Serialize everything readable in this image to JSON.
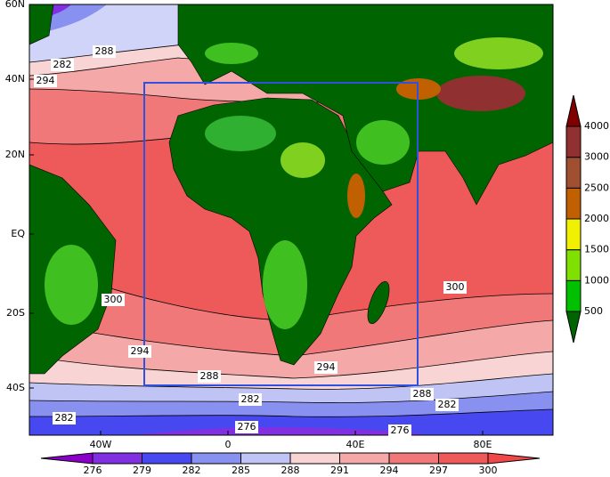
{
  "map": {
    "lat_labels": [
      "60N",
      "40N",
      "20N",
      "EQ",
      "20S",
      "40S"
    ],
    "lon_labels": [
      "40W",
      "0",
      "40E",
      "80E"
    ],
    "contour_labels": [
      288,
      282,
      294,
      300,
      294,
      288,
      282,
      276,
      282,
      294,
      288,
      282,
      276,
      300
    ]
  },
  "elevation_colorbar": {
    "ticks": [
      500,
      1000,
      1500,
      2000,
      2500,
      3000,
      4000
    ]
  },
  "temperature_colorbar": {
    "ticks": [
      276,
      279,
      282,
      285,
      288,
      291,
      294,
      297,
      300
    ]
  }
}
